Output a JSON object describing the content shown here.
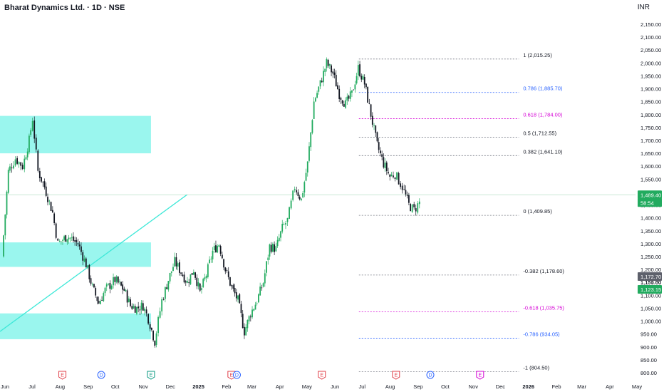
{
  "header": {
    "title": "Bharat Dynamics Ltd. · 1D · NSE",
    "currency": "INR"
  },
  "colors": {
    "up": "#22ab5f",
    "down": "#131722",
    "zone": "#8ff5ec",
    "trendline": "#3ee8d8",
    "fib_gray": "#131722",
    "fib_blue": "#2962ff",
    "fib_magenta": "#d500d5",
    "earnings": "#e0404a",
    "dividend": "#2962ff",
    "event_green": "#089981",
    "event_magenta": "#d500d5"
  },
  "chart_data": {
    "type": "candlestick",
    "title": "Bharat Dynamics Ltd. · 1D · NSE",
    "currency": "INR",
    "y_range": [
      780,
      2175
    ],
    "y_ticks": [
      800,
      850,
      900,
      950,
      1000,
      1050,
      1100,
      1150,
      1200,
      1250,
      1300,
      1350,
      1400,
      1450,
      1500,
      1550,
      1600,
      1650,
      1700,
      1750,
      1800,
      1850,
      1900,
      1950,
      2000,
      2050,
      2100,
      2150
    ],
    "x_labels": [
      "Jun",
      "Jul",
      "Aug",
      "Sep",
      "Oct",
      "Nov",
      "Dec",
      "2025",
      "Feb",
      "Mar",
      "Apr",
      "May",
      "Jun",
      "Jul",
      "Aug",
      "Sep",
      "Oct",
      "Nov",
      "Dec",
      "2026",
      "Feb",
      "Mar",
      "Apr",
      "May"
    ],
    "price_path": [
      [
        "2024-06-05",
        1250
      ],
      [
        "2024-06-12",
        1580
      ],
      [
        "2024-06-20",
        1630
      ],
      [
        "2024-06-28",
        1600
      ],
      [
        "2024-07-05",
        1700
      ],
      [
        "2024-07-09",
        1784
      ],
      [
        "2024-07-15",
        1580
      ],
      [
        "2024-07-22",
        1520
      ],
      [
        "2024-07-31",
        1420
      ],
      [
        "2024-08-06",
        1300
      ],
      [
        "2024-08-16",
        1330
      ],
      [
        "2024-08-28",
        1300
      ],
      [
        "2024-09-06",
        1220
      ],
      [
        "2024-09-13",
        1130
      ],
      [
        "2024-09-20",
        1070
      ],
      [
        "2024-09-27",
        1120
      ],
      [
        "2024-10-08",
        1160
      ],
      [
        "2024-10-18",
        1120
      ],
      [
        "2024-10-25",
        1060
      ],
      [
        "2024-11-01",
        1050
      ],
      [
        "2024-11-08",
        1060
      ],
      [
        "2024-11-14",
        1010
      ],
      [
        "2024-11-21",
        920
      ],
      [
        "2024-11-29",
        1080
      ],
      [
        "2024-12-06",
        1160
      ],
      [
        "2024-12-13",
        1230
      ],
      [
        "2024-12-20",
        1190
      ],
      [
        "2024-12-27",
        1150
      ],
      [
        "2025-01-03",
        1200
      ],
      [
        "2025-01-10",
        1110
      ],
      [
        "2025-01-17",
        1180
      ],
      [
        "2025-01-24",
        1270
      ],
      [
        "2025-01-31",
        1300
      ],
      [
        "2025-02-07",
        1200
      ],
      [
        "2025-02-14",
        1130
      ],
      [
        "2025-02-21",
        1080
      ],
      [
        "2025-02-28",
        960
      ],
      [
        "2025-03-07",
        1030
      ],
      [
        "2025-03-14",
        1080
      ],
      [
        "2025-03-21",
        1150
      ],
      [
        "2025-03-28",
        1290
      ],
      [
        "2025-04-04",
        1280
      ],
      [
        "2025-04-11",
        1360
      ],
      [
        "2025-04-17",
        1390
      ],
      [
        "2025-04-25",
        1520
      ],
      [
        "2025-05-02",
        1470
      ],
      [
        "2025-05-09",
        1610
      ],
      [
        "2025-05-16",
        1850
      ],
      [
        "2025-05-23",
        1920
      ],
      [
        "2025-05-30",
        2000
      ],
      [
        "2025-06-06",
        1960
      ],
      [
        "2025-06-13",
        1880
      ],
      [
        "2025-06-20",
        1840
      ],
      [
        "2025-06-27",
        1880
      ],
      [
        "2025-07-04",
        1980
      ],
      [
        "2025-07-11",
        1920
      ],
      [
        "2025-07-18",
        1800
      ],
      [
        "2025-07-25",
        1680
      ],
      [
        "2025-08-01",
        1610
      ],
      [
        "2025-08-08",
        1560
      ],
      [
        "2025-08-14",
        1570
      ],
      [
        "2025-08-22",
        1520
      ],
      [
        "2025-08-29",
        1450
      ],
      [
        "2025-09-04",
        1430
      ],
      [
        "2025-09-10",
        1460
      ]
    ],
    "last_price": 1489.4,
    "last_price_countdown": "58:54",
    "fibonacci": [
      {
        "level": "1",
        "value": 2015.25,
        "label": "1 (2,015.25)",
        "color": "gray"
      },
      {
        "level": "0.786",
        "value": 1885.7,
        "label": "0.786 (1,885.70)",
        "color": "blue"
      },
      {
        "level": "0.618",
        "value": 1784.0,
        "label": "0.618 (1,784.00)",
        "color": "magenta"
      },
      {
        "level": "0.5",
        "value": 1712.55,
        "label": "0.5 (1,712.55)",
        "color": "gray"
      },
      {
        "level": "0.382",
        "value": 1641.1,
        "label": "0.382 (1,641.10)",
        "color": "gray"
      },
      {
        "level": "0",
        "value": 1409.85,
        "label": "0 (1,409.85)",
        "color": "gray"
      },
      {
        "level": "-0.382",
        "value": 1178.6,
        "label": "-0.382 (1,178.60)",
        "color": "gray"
      },
      {
        "level": "-0.618",
        "value": 1035.75,
        "label": "-0.618 (1,035.75)",
        "color": "magenta"
      },
      {
        "level": "-0.786",
        "value": 934.05,
        "label": "-0.786 (934.05)",
        "color": "blue"
      },
      {
        "level": "-1",
        "value": 804.5,
        "label": "-1 (804.50)",
        "color": "gray"
      }
    ],
    "zones": [
      {
        "from": "2024-06-01",
        "to": "2024-11-15",
        "low": 1650,
        "high": 1795
      },
      {
        "from": "2024-06-01",
        "to": "2024-11-15",
        "low": 1210,
        "high": 1305
      },
      {
        "from": "2024-06-01",
        "to": "2024-11-15",
        "low": 930,
        "high": 1030
      }
    ],
    "trendline": [
      [
        "2024-06-01",
        960
      ],
      [
        "2024-12-25",
        1490
      ]
    ],
    "price_badges": [
      {
        "value": 1489.4,
        "text": "1,489.40",
        "bg": "#22ab5f"
      },
      {
        "value": 1459.0,
        "text": "58:54",
        "bg": "#22ab5f"
      },
      {
        "value": 1172.7,
        "text": "1,172.70",
        "bg": "#5d606b"
      },
      {
        "value": 1123.15,
        "text": "1,123.15",
        "bg": "#22ab5f"
      }
    ],
    "axis_notes": [
      {
        "value": 1151.8,
        "text": "1,151.80"
      }
    ],
    "events": [
      {
        "date": "2024-08-09",
        "letter": "E",
        "kind": "earnings"
      },
      {
        "date": "2024-09-21",
        "letter": "D",
        "kind": "dividend"
      },
      {
        "date": "2024-11-15",
        "letter": "E",
        "kind": "event_green"
      },
      {
        "date": "2025-02-12",
        "letter": "E",
        "kind": "earnings"
      },
      {
        "date": "2025-02-18",
        "letter": "D",
        "kind": "dividend"
      },
      {
        "date": "2025-05-23",
        "letter": "E",
        "kind": "earnings"
      },
      {
        "date": "2025-08-13",
        "letter": "E",
        "kind": "earnings"
      },
      {
        "date": "2025-09-20",
        "letter": "D",
        "kind": "dividend"
      },
      {
        "date": "2025-11-14",
        "letter": "E",
        "kind": "event_magenta"
      }
    ]
  }
}
